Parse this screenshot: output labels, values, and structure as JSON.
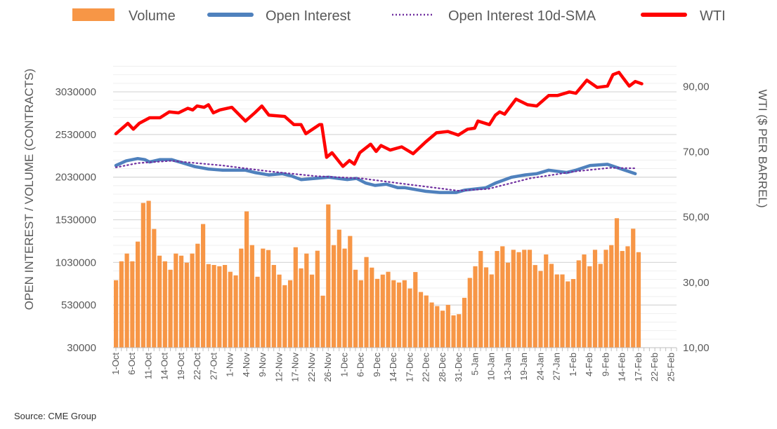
{
  "chart_data": {
    "type": "bar+line",
    "title": "",
    "source": "Source: CME Group",
    "legend": {
      "placement": "top",
      "entries": [
        "Volume",
        "Open Interest",
        "Open Interest 10d-SMA",
        "WTI"
      ]
    },
    "colors": {
      "volume": "#F79646",
      "open_interest": "#4F81BD",
      "sma": "#7030A0",
      "wti": "#FF0000"
    },
    "x_axis": {
      "tick_labels": [
        "1-Oct",
        "6-Oct",
        "11-Oct",
        "14-Oct",
        "19-Oct",
        "22-Oct",
        "27-Oct",
        "1-Nov",
        "4-Nov",
        "9-Nov",
        "12-Nov",
        "17-Nov",
        "22-Nov",
        "26-Nov",
        "1-Dec",
        "6-Dec",
        "9-Dec",
        "14-Dec",
        "17-Dec",
        "22-Dec",
        "28-Dec",
        "31-Dec",
        "5-Jan",
        "10-Jan",
        "13-Jan",
        "19-Jan",
        "24-Jan",
        "27-Jan",
        "1-Feb",
        "4-Feb",
        "9-Feb",
        "14-Feb",
        "17-Feb",
        "22-Feb",
        "25-Feb"
      ],
      "tick_every_days": 3,
      "range_day_index": [
        0,
        103
      ]
    },
    "y_left": {
      "label": "OPEN INTEREST / VOLUME (CONTRACTS)",
      "ticks": [
        "30000",
        "530000",
        "1030000",
        "1530000",
        "2030000",
        "2530000",
        "3030000"
      ],
      "tick_values": [
        30000,
        530000,
        1030000,
        1530000,
        2030000,
        2530000,
        3030000
      ],
      "ylim": [
        30000,
        3400000
      ]
    },
    "y_right": {
      "label": "WTI ($ PER BARREL)",
      "ticks": [
        "10,00",
        "30,00",
        "50,00",
        "70,00",
        "90,00"
      ],
      "tick_values": [
        10,
        30,
        50,
        70,
        90
      ],
      "ylim": [
        10,
        98
      ]
    },
    "series": [
      {
        "name": "Volume",
        "type": "bar",
        "axis": "left",
        "values": [
          821000,
          1043000,
          1134000,
          1043000,
          1274000,
          1727000,
          1752000,
          1422000,
          1109000,
          1043000,
          944000,
          1134000,
          1109000,
          1027000,
          1134000,
          1249000,
          1480000,
          1010000,
          1000000,
          985000,
          1000000,
          920000,
          878000,
          1192000,
          1628000,
          1233000,
          862000,
          1192000,
          1175000,
          1000000,
          887000,
          763000,
          821000,
          1208000,
          960000,
          1134000,
          887000,
          1167000,
          640000,
          1710000,
          1233000,
          1414000,
          1192000,
          1340000,
          944000,
          821000,
          1093000,
          969000,
          837000,
          887000,
          920000,
          821000,
          794000,
          821000,
          724000,
          917000,
          683000,
          642000,
          560000,
          518000,
          464000,
          532000,
          409000,
          423000,
          615000,
          848000,
          985000,
          1164000,
          972000,
          889000,
          1164000,
          1219000,
          1027000,
          1178000,
          1150000,
          1178000,
          1178000,
          999000,
          930000,
          1123000,
          1013000,
          889000,
          889000,
          807000,
          835000,
          1054000,
          1123000,
          985000,
          1178000,
          1013000,
          1178000,
          1233000,
          1548000,
          1164000,
          1219000,
          1425000,
          1150000
        ]
      },
      {
        "name": "Open Interest",
        "type": "line",
        "axis": "left",
        "points": [
          [
            0,
            2166000
          ],
          [
            1.9,
            2221000
          ],
          [
            4,
            2248000
          ],
          [
            5.3,
            2235000
          ],
          [
            6.2,
            2207000
          ],
          [
            8.1,
            2235000
          ],
          [
            10.2,
            2235000
          ],
          [
            12.4,
            2194000
          ],
          [
            14.5,
            2153000
          ],
          [
            17,
            2125000
          ],
          [
            19.6,
            2111000
          ],
          [
            23.8,
            2111000
          ],
          [
            25.5,
            2084000
          ],
          [
            28.1,
            2056000
          ],
          [
            30.6,
            2070000
          ],
          [
            32.3,
            2042000
          ],
          [
            34,
            2001000
          ],
          [
            36.6,
            2015000
          ],
          [
            39.1,
            2029000
          ],
          [
            40.8,
            2015000
          ],
          [
            42.5,
            2001000
          ],
          [
            44.2,
            2015000
          ],
          [
            45.9,
            1960000
          ],
          [
            47.6,
            1933000
          ],
          [
            49.7,
            1947000
          ],
          [
            51.8,
            1906000
          ],
          [
            53.1,
            1906000
          ],
          [
            56.9,
            1864000
          ],
          [
            59.5,
            1850000
          ],
          [
            62.5,
            1850000
          ],
          [
            64.1,
            1878000
          ],
          [
            68,
            1906000
          ],
          [
            69.7,
            1960000
          ],
          [
            72.7,
            2029000
          ],
          [
            75.2,
            2056000
          ],
          [
            77.3,
            2070000
          ],
          [
            79.5,
            2111000
          ],
          [
            82.8,
            2084000
          ],
          [
            84.5,
            2111000
          ],
          [
            87.1,
            2166000
          ],
          [
            90.3,
            2180000
          ],
          [
            92.2,
            2139000
          ],
          [
            95.4,
            2070000
          ]
        ]
      },
      {
        "name": "Open Interest 10d-SMA",
        "type": "line",
        "style": "dotted",
        "axis": "left",
        "points": [
          [
            0,
            2144000
          ],
          [
            4,
            2194000
          ],
          [
            10.2,
            2221000
          ],
          [
            19.6,
            2166000
          ],
          [
            28.1,
            2098000
          ],
          [
            36.6,
            2042000
          ],
          [
            45.1,
            2015000
          ],
          [
            51.8,
            1960000
          ],
          [
            62.9,
            1870000
          ],
          [
            68.4,
            1892000
          ],
          [
            76,
            2015000
          ],
          [
            84.5,
            2098000
          ],
          [
            90.8,
            2139000
          ],
          [
            95.4,
            2133000
          ]
        ]
      },
      {
        "name": "WTI",
        "type": "line",
        "axis": "right",
        "points": [
          [
            0,
            75.5
          ],
          [
            2.2,
            78.7
          ],
          [
            3.2,
            76.9
          ],
          [
            4.3,
            78.7
          ],
          [
            6.2,
            80.4
          ],
          [
            8.1,
            80.4
          ],
          [
            9.8,
            82.2
          ],
          [
            11.5,
            81.9
          ],
          [
            13.2,
            83.3
          ],
          [
            14.1,
            82.8
          ],
          [
            14.9,
            84.0
          ],
          [
            16.2,
            83.6
          ],
          [
            17,
            84.4
          ],
          [
            17.9,
            81.9
          ],
          [
            19.1,
            82.8
          ],
          [
            21.3,
            83.6
          ],
          [
            23.8,
            79.4
          ],
          [
            25.5,
            81.9
          ],
          [
            26.8,
            84.0
          ],
          [
            28.1,
            81.2
          ],
          [
            31,
            80.8
          ],
          [
            32.7,
            78.3
          ],
          [
            34,
            78.3
          ],
          [
            34.9,
            75.5
          ],
          [
            37.4,
            78.3
          ],
          [
            37.8,
            78.3
          ],
          [
            38.7,
            68.3
          ],
          [
            39.7,
            69.7
          ],
          [
            41.7,
            65.5
          ],
          [
            42.9,
            67.3
          ],
          [
            43.8,
            66.2
          ],
          [
            44.8,
            69.7
          ],
          [
            46.8,
            72.3
          ],
          [
            47.8,
            70.1
          ],
          [
            48.7,
            71.9
          ],
          [
            50.4,
            70.5
          ],
          [
            52.5,
            71.5
          ],
          [
            54.6,
            69.4
          ],
          [
            56.9,
            73.0
          ],
          [
            58.9,
            75.8
          ],
          [
            61,
            76.2
          ],
          [
            62.9,
            75.1
          ],
          [
            64.6,
            76.9
          ],
          [
            65.9,
            77.2
          ],
          [
            66.5,
            79.4
          ],
          [
            68.6,
            78.3
          ],
          [
            69.7,
            81.2
          ],
          [
            70.5,
            82.2
          ],
          [
            71.4,
            81.5
          ],
          [
            73.5,
            86.1
          ],
          [
            75.6,
            84.4
          ],
          [
            77.3,
            84.0
          ],
          [
            79.5,
            87.2
          ],
          [
            81.1,
            87.2
          ],
          [
            83.3,
            88.3
          ],
          [
            84.5,
            87.9
          ],
          [
            86.5,
            91.9
          ],
          [
            88.4,
            89.7
          ],
          [
            90.3,
            90.1
          ],
          [
            91.3,
            93.6
          ],
          [
            92.4,
            94.3
          ],
          [
            94.3,
            90.1
          ],
          [
            95.4,
            91.5
          ],
          [
            96.6,
            90.8
          ]
        ]
      }
    ]
  }
}
